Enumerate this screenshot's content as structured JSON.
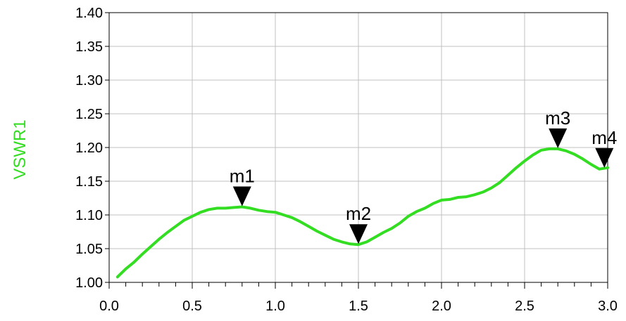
{
  "chart_data": {
    "type": "line",
    "title": "",
    "xlabel": "",
    "ylabel": "VSWR1",
    "xlim": [
      0.0,
      3.0
    ],
    "ylim": [
      1.0,
      1.4
    ],
    "xticks": [
      "0.0",
      "0.5",
      "1.0",
      "1.5",
      "2.0",
      "2.5",
      "3.0"
    ],
    "yticks": [
      "1.00",
      "1.05",
      "1.10",
      "1.15",
      "1.20",
      "1.25",
      "1.30",
      "1.35",
      "1.40"
    ],
    "grid": true,
    "colors": {
      "series": "#33dd22",
      "ylabel": "#33dd22",
      "marker": "#000000"
    },
    "series": [
      {
        "x": [
          0.05,
          0.1,
          0.15,
          0.2,
          0.25,
          0.3,
          0.35,
          0.4,
          0.45,
          0.5,
          0.55,
          0.6,
          0.65,
          0.7,
          0.75,
          0.8,
          0.85,
          0.9,
          0.95,
          1.0,
          1.05,
          1.1,
          1.15,
          1.2,
          1.25,
          1.3,
          1.35,
          1.4,
          1.45,
          1.5,
          1.55,
          1.6,
          1.65,
          1.7,
          1.75,
          1.8,
          1.85,
          1.9,
          1.95,
          2.0,
          2.05,
          2.1,
          2.15,
          2.2,
          2.25,
          2.3,
          2.35,
          2.4,
          2.45,
          2.5,
          2.55,
          2.6,
          2.65,
          2.7,
          2.75,
          2.8,
          2.85,
          2.9,
          2.95,
          3.0
        ],
        "y": [
          1.008,
          1.02,
          1.03,
          1.042,
          1.053,
          1.064,
          1.074,
          1.083,
          1.092,
          1.098,
          1.104,
          1.108,
          1.11,
          1.11,
          1.111,
          1.112,
          1.11,
          1.107,
          1.105,
          1.104,
          1.1,
          1.096,
          1.09,
          1.083,
          1.076,
          1.07,
          1.064,
          1.06,
          1.057,
          1.056,
          1.06,
          1.067,
          1.074,
          1.08,
          1.088,
          1.098,
          1.105,
          1.11,
          1.117,
          1.122,
          1.123,
          1.126,
          1.127,
          1.13,
          1.134,
          1.14,
          1.148,
          1.159,
          1.17,
          1.18,
          1.189,
          1.196,
          1.198,
          1.198,
          1.195,
          1.19,
          1.183,
          1.175,
          1.168,
          1.17
        ]
      }
    ],
    "markers": [
      {
        "label": "m1",
        "x": 0.8,
        "y": 1.112
      },
      {
        "label": "m2",
        "x": 1.5,
        "y": 1.056
      },
      {
        "label": "m3",
        "x": 2.7,
        "y": 1.198
      },
      {
        "label": "m4",
        "x": 2.98,
        "y": 1.169
      }
    ]
  }
}
